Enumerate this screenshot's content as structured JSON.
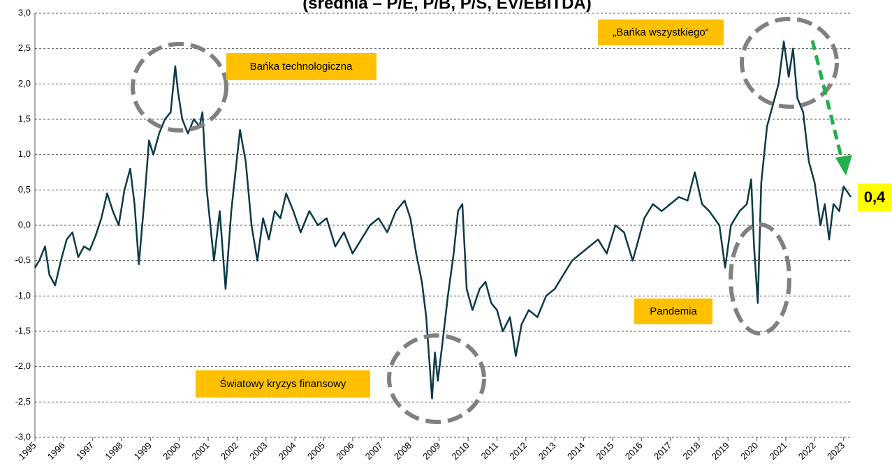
{
  "chart_data": {
    "type": "line",
    "title": "(średnia – P/E, P/B, P/S, EV/EBITDA)",
    "color": "#0b3a48",
    "x": [
      1995.0,
      1995.15,
      1995.35,
      1995.5,
      1995.7,
      1995.9,
      1996.1,
      1996.3,
      1996.5,
      1996.7,
      1996.9,
      1997.1,
      1997.3,
      1997.5,
      1997.7,
      1997.9,
      1998.1,
      1998.3,
      1998.45,
      1998.6,
      1998.8,
      1998.95,
      1999.1,
      1999.3,
      1999.5,
      1999.7,
      1999.86,
      1999.95,
      2000.1,
      2000.3,
      2000.5,
      2000.7,
      2000.8,
      2000.95,
      2001.2,
      2001.4,
      2001.6,
      2001.8,
      2002.1,
      2002.3,
      2002.5,
      2002.7,
      2002.9,
      2003.1,
      2003.3,
      2003.5,
      2003.7,
      2003.95,
      2004.2,
      2004.5,
      2004.8,
      2005.1,
      2005.4,
      2005.7,
      2006.0,
      2006.3,
      2006.6,
      2006.9,
      2007.2,
      2007.5,
      2007.8,
      2008.0,
      2008.2,
      2008.4,
      2008.55,
      2008.75,
      2008.85,
      2008.95,
      2009.1,
      2009.3,
      2009.5,
      2009.65,
      2009.8,
      2009.95,
      2010.15,
      2010.4,
      2010.6,
      2010.8,
      2011.0,
      2011.2,
      2011.45,
      2011.65,
      2011.85,
      2012.1,
      2012.4,
      2012.7,
      2013.0,
      2013.3,
      2013.6,
      2013.9,
      2014.2,
      2014.5,
      2014.8,
      2015.1,
      2015.4,
      2015.7,
      2015.9,
      2016.1,
      2016.4,
      2016.7,
      2017.0,
      2017.3,
      2017.6,
      2017.85,
      2018.1,
      2018.35,
      2018.7,
      2018.9,
      2019.1,
      2019.4,
      2019.65,
      2019.8,
      2019.9,
      2020.03,
      2020.15,
      2020.35,
      2020.55,
      2020.75,
      2020.93,
      2021.1,
      2021.25,
      2021.4,
      2021.6,
      2021.8,
      2022.0,
      2022.2,
      2022.35,
      2022.5,
      2022.65,
      2022.85,
      2023.0,
      2023.17,
      2023.25
    ],
    "values": [
      -0.6,
      -0.5,
      -0.3,
      -0.7,
      -0.85,
      -0.5,
      -0.2,
      -0.1,
      -0.45,
      -0.3,
      -0.35,
      -0.15,
      0.1,
      0.45,
      0.2,
      0.0,
      0.5,
      0.8,
      0.3,
      -0.55,
      0.4,
      1.2,
      1.0,
      1.3,
      1.5,
      1.6,
      2.25,
      1.9,
      1.5,
      1.3,
      1.5,
      1.4,
      1.6,
      0.5,
      -0.5,
      0.2,
      -0.9,
      0.2,
      1.35,
      0.9,
      0.0,
      -0.5,
      0.1,
      -0.2,
      0.2,
      0.1,
      0.45,
      0.2,
      -0.1,
      0.2,
      0.0,
      0.1,
      -0.3,
      -0.1,
      -0.4,
      -0.2,
      0.0,
      0.1,
      -0.1,
      0.2,
      0.35,
      0.1,
      -0.4,
      -0.8,
      -1.3,
      -2.45,
      -1.8,
      -2.2,
      -1.7,
      -1.0,
      -0.4,
      0.2,
      0.3,
      -0.9,
      -1.2,
      -0.9,
      -0.8,
      -1.1,
      -1.2,
      -1.5,
      -1.3,
      -1.85,
      -1.4,
      -1.2,
      -1.3,
      -1.0,
      -0.9,
      -0.7,
      -0.5,
      -0.4,
      -0.3,
      -0.2,
      -0.4,
      0.0,
      -0.1,
      -0.5,
      -0.2,
      0.1,
      0.3,
      0.2,
      0.3,
      0.4,
      0.35,
      0.75,
      0.3,
      0.2,
      0.0,
      -0.6,
      0.0,
      0.2,
      0.3,
      0.65,
      -0.3,
      -1.1,
      0.6,
      1.4,
      1.7,
      2.0,
      2.6,
      2.1,
      2.5,
      1.8,
      1.6,
      0.9,
      0.6,
      0.0,
      0.3,
      -0.2,
      0.3,
      0.2,
      0.55,
      0.45,
      0.4
    ],
    "xlim": [
      1995,
      2023.25
    ],
    "xticks": [
      1995,
      1996,
      1997,
      1998,
      1999,
      2000,
      2001,
      2002,
      2003,
      2004,
      2005,
      2006,
      2007,
      2008,
      2009,
      2010,
      2011,
      2012,
      2013,
      2014,
      2015,
      2016,
      2017,
      2018,
      2019,
      2020,
      2021,
      2022,
      2023
    ],
    "ylim": [
      -3,
      3
    ],
    "yticks": [
      {
        "value": 3,
        "label": "3,0"
      },
      {
        "value": 2.5,
        "label": "2,5"
      },
      {
        "value": 2,
        "label": "2,0"
      },
      {
        "value": 1.5,
        "label": "1,5"
      },
      {
        "value": 1,
        "label": "1,0"
      },
      {
        "value": 0.5,
        "label": "0,5"
      },
      {
        "value": 0,
        "label": "0,0"
      },
      {
        "value": -0.5,
        "label": "-0,5"
      },
      {
        "value": -1,
        "label": "-1,0"
      },
      {
        "value": -1.5,
        "label": "-1,5"
      },
      {
        "value": -2,
        "label": "-2,0"
      },
      {
        "value": -2.5,
        "label": "-2,5"
      },
      {
        "value": -3,
        "label": "-3,0"
      }
    ],
    "grid": true,
    "annotations": [
      "Bańka technologiczna",
      "„Bańka wszystkiego“",
      "Światowy kryzys finansowy",
      "Pandemia"
    ],
    "end_label": "0,4"
  }
}
